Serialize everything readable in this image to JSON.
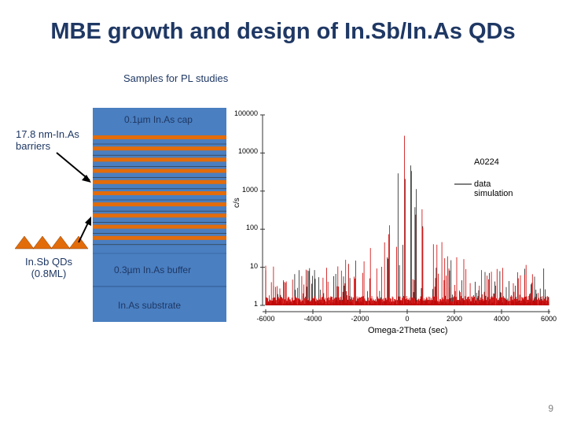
{
  "slide": {
    "title": "MBE growth and design of In.Sb/In.As QDs",
    "subtitle": "Samples for PL studies",
    "page_number": "9"
  },
  "structure": {
    "barrier_label": "17.8 nm-In.As barriers",
    "barrier_label_line1": "17.8 nm-In.As",
    "barrier_label_line2": "barriers",
    "qd_label_line1": "In.Sb QDs",
    "qd_label_line2": "(0.8ML)",
    "cap_label": "0.1µm In.As cap",
    "buffer_label": "0.3µm In.As buffer",
    "substrate_label": "In.As substrate",
    "colors": {
      "stack": "#4a7fc1",
      "qd_layer": "#e36c0a",
      "qd_triangle": "#e36c0a",
      "arrow": "#000000"
    },
    "qd_layer_count": 10
  },
  "chart_data": {
    "type": "line",
    "xlabel": "Omega-2Theta (sec)",
    "ylabel": "c/s",
    "x_ticks": [
      "-6000",
      "-4000",
      "-2000",
      "0",
      "2000",
      "4000",
      "6000"
    ],
    "y_ticks": [
      "1",
      "10",
      "100",
      "1000",
      "10000",
      "100000"
    ],
    "xlim": [
      -6000,
      6000
    ],
    "ylim": [
      1,
      100000
    ],
    "yscale": "log",
    "sample_label": "A0224",
    "legend": [
      "data",
      "simulation"
    ],
    "legend_placement": "right",
    "series": [
      {
        "name": "data",
        "color": "#000000"
      },
      {
        "name": "simulation",
        "color": "#cc0000"
      }
    ]
  }
}
